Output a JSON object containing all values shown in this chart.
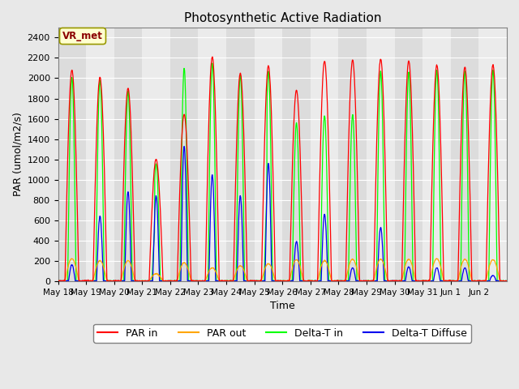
{
  "title": "Photosynthetic Active Radiation",
  "ylabel": "PAR (umol/m2/s)",
  "xlabel": "Time",
  "ylim": [
    0,
    2500
  ],
  "yticks": [
    0,
    200,
    400,
    600,
    800,
    1000,
    1200,
    1400,
    1600,
    1800,
    2000,
    2200,
    2400
  ],
  "annotation_text": "VR_met",
  "annotation_color": "#8B0000",
  "annotation_bg": "#FFFFD0",
  "annotation_border": "#999900",
  "colors": {
    "PAR in": "#FF0000",
    "PAR out": "#FFA500",
    "Delta-T in": "#00FF00",
    "Delta-T Diffuse": "#0000EE"
  },
  "bg_color": "#E8E8E8",
  "stripe_color_dark": "#DCDCDC",
  "stripe_color_light": "#EBEBEB",
  "grid_color": "#FFFFFF",
  "n_days": 16,
  "start_day": 18,
  "pts_per_day": 96,
  "par_in_peaks": [
    2080,
    2010,
    1900,
    1200,
    1640,
    2210,
    2050,
    2120,
    1880,
    2170,
    2180,
    2190,
    2170,
    2130,
    2110,
    2130
  ],
  "par_out_peaks": [
    220,
    200,
    200,
    70,
    180,
    130,
    150,
    170,
    210,
    200,
    215,
    215,
    215,
    220,
    215,
    210
  ],
  "delta_t_in_peaks": [
    2010,
    1980,
    1870,
    1160,
    2100,
    2150,
    2030,
    2070,
    1560,
    1630,
    1640,
    2070,
    2060,
    2080,
    2070,
    2080
  ],
  "delta_t_diff_peaks": [
    160,
    640,
    880,
    840,
    1330,
    1050,
    840,
    1160,
    390,
    660,
    130,
    530,
    140,
    130,
    130,
    55
  ],
  "delta_t_in_partial_cloud_days": [
    3,
    7
  ],
  "tick_labels": [
    "May 18",
    "May 19",
    "May 20",
    "May 21",
    "May 22",
    "May 23",
    "May 24",
    "May 25",
    "May 26",
    "May 27",
    "May 28",
    "May 29",
    "May 30",
    "May 31",
    "Jun 1",
    "Jun 2"
  ],
  "legend_labels": [
    "PAR in",
    "PAR out",
    "Delta-T in",
    "Delta-T Diffuse"
  ]
}
